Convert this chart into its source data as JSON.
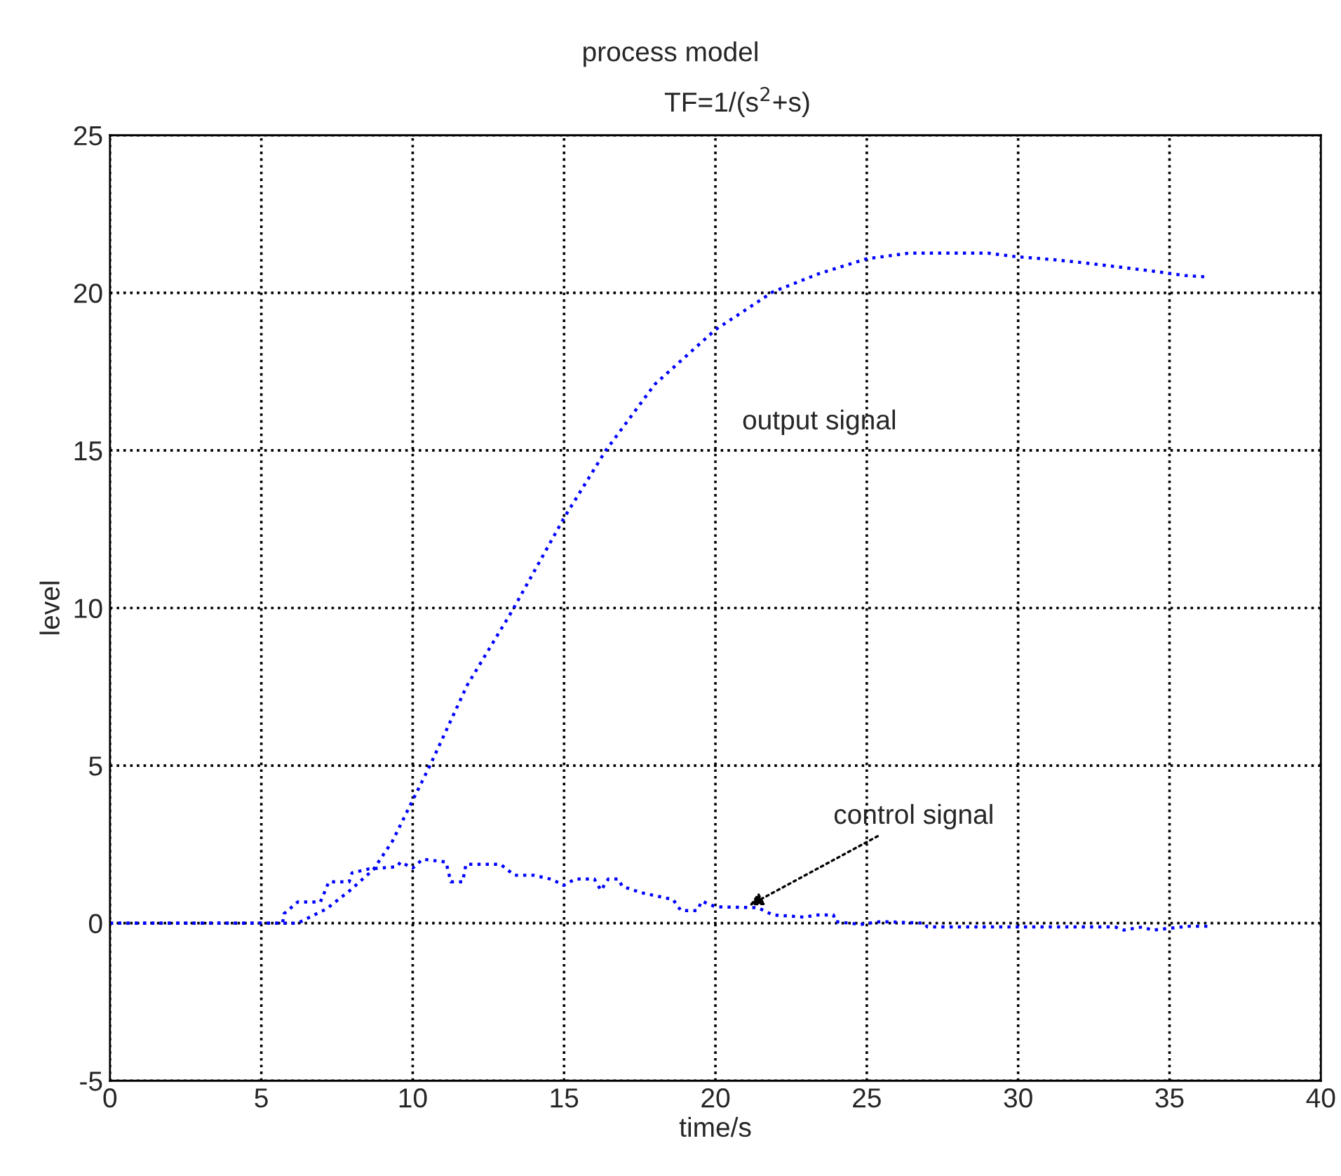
{
  "chart_data": {
    "type": "line",
    "title": "process model",
    "subtitle": "TF=1/(s$^{2}$+s)",
    "xlabel": "time/s",
    "ylabel": "level",
    "xlim": [
      0,
      40
    ],
    "xticks": [
      0,
      5,
      10,
      15,
      20,
      25,
      30,
      35,
      40
    ],
    "ylim": [
      -5,
      25
    ],
    "yticks": [
      -5,
      0,
      5,
      10,
      15,
      20,
      25
    ],
    "grid": true,
    "line_style": "dotted",
    "marker": "none",
    "series": [
      {
        "color": "#0000ff",
        "x": [
          0,
          6.2,
          7.15,
          7.93,
          8.7,
          9.33,
          10,
          10.57,
          11.8,
          13.28,
          15,
          16.38,
          18.0,
          20.0,
          21.9,
          23.4,
          25,
          26.4,
          29.0,
          29.9,
          31.2,
          32.1,
          33.5,
          34.6,
          35.5,
          36.3
        ],
        "values": [
          0,
          0,
          0.45,
          1.04,
          1.7,
          2.6,
          3.9,
          5.0,
          7.55,
          9.9,
          12.86,
          15.0,
          17.1,
          18.83,
          20.03,
          20.6,
          21.08,
          21.26,
          21.26,
          21.15,
          21.05,
          20.96,
          20.8,
          20.67,
          20.55,
          20.5
        ]
      },
      {
        "color": "#0000ff",
        "x": [
          0,
          5.7,
          5.75,
          6.2,
          6.95,
          7.23,
          7.9,
          8.0,
          8.55,
          9.48,
          9.6,
          10,
          10.33,
          11.1,
          11.26,
          11.65,
          11.76,
          12.9,
          13.36,
          14.0,
          14.6,
          14.99,
          15.37,
          16.0,
          16.22,
          16.46,
          16.8,
          16.92,
          17.54,
          18.6,
          18.86,
          19.4,
          19.55,
          20.0,
          21.4,
          21.9,
          22.97,
          23.3,
          23.9,
          23.96,
          24.8,
          25.45,
          26.9,
          27.0,
          33.2,
          33.5,
          34.1,
          34.44,
          35.6,
          36.3
        ],
        "values": [
          0,
          0,
          0.3,
          0.67,
          0.67,
          1.31,
          1.31,
          1.6,
          1.72,
          1.79,
          1.94,
          1.75,
          2.03,
          1.94,
          1.31,
          1.31,
          1.87,
          1.87,
          1.52,
          1.52,
          1.39,
          1.2,
          1.4,
          1.4,
          1.04,
          1.4,
          1.4,
          1.17,
          0.97,
          0.75,
          0.4,
          0.4,
          0.7,
          0.52,
          0.49,
          0.26,
          0.19,
          0.26,
          0.26,
          0.05,
          -0.04,
          0.05,
          0,
          -0.12,
          -0.12,
          -0.22,
          -0.12,
          -0.22,
          -0.1,
          -0.1
        ]
      }
    ],
    "annotations": [
      "output signal",
      {
        "text": "control signal",
        "x": 21.0,
        "y": 0.5
      }
    ]
  }
}
